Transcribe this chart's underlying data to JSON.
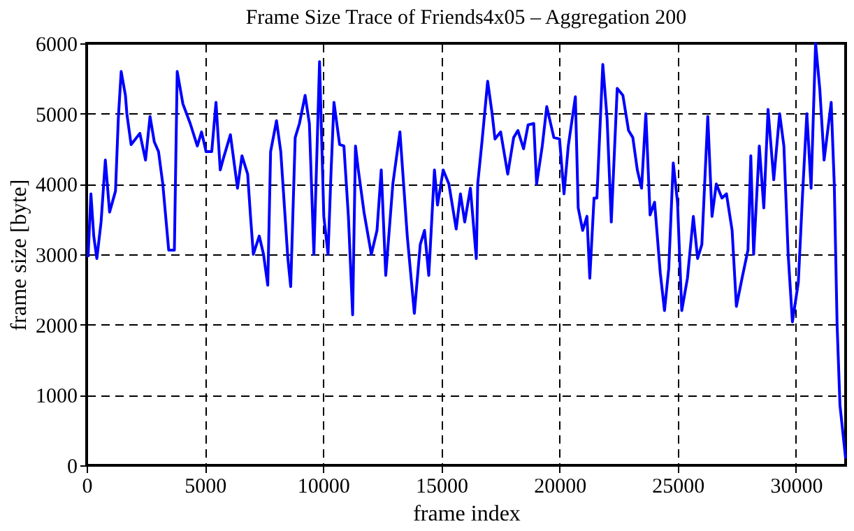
{
  "chart_data": {
    "type": "line",
    "title": "Frame Size Trace of Friends4x05 – Aggregation 200",
    "xlabel": "frame index",
    "ylabel": "frame size [byte]",
    "xlim": [
      0,
      32100
    ],
    "ylim": [
      0,
      6000
    ],
    "xticks": [
      0,
      5000,
      10000,
      15000,
      20000,
      25000,
      30000
    ],
    "yticks": [
      0,
      1000,
      2000,
      3000,
      4000,
      5000,
      6000
    ],
    "grid": true,
    "marker": "none",
    "line_style": "solid",
    "series": [
      {
        "color": "#0000ff",
        "x": [
          60,
          180,
          300,
          430,
          610,
          790,
          970,
          1220,
          1340,
          1460,
          1640,
          1700,
          1880,
          2250,
          2490,
          2680,
          2860,
          3040,
          3220,
          3470,
          3710,
          3830,
          4070,
          4380,
          4680,
          4860,
          5050,
          5290,
          5470,
          5650,
          5780,
          6080,
          6380,
          6570,
          6810,
          6930,
          7050,
          7300,
          7480,
          7660,
          7780,
          8030,
          8210,
          8510,
          8630,
          8820,
          9000,
          9240,
          9420,
          9610,
          9730,
          9850,
          10030,
          10210,
          10340,
          10460,
          10700,
          10880,
          11070,
          11250,
          11370,
          11490,
          11730,
          12040,
          12280,
          12460,
          12650,
          12950,
          13250,
          13560,
          13860,
          14110,
          14290,
          14470,
          14710,
          14840,
          15080,
          15320,
          15630,
          15810,
          15990,
          16230,
          16480,
          16540,
          16720,
          16960,
          17150,
          17270,
          17510,
          17810,
          18060,
          18240,
          18480,
          18670,
          18910,
          19030,
          19270,
          19460,
          19760,
          20000,
          20190,
          20370,
          20670,
          20790,
          20980,
          21160,
          21280,
          21460,
          21580,
          21830,
          22010,
          22190,
          22440,
          22680,
          22920,
          23100,
          23290,
          23470,
          23650,
          23830,
          24020,
          24260,
          24440,
          24620,
          24810,
          24990,
          25170,
          25410,
          25660,
          25840,
          26020,
          26270,
          26450,
          26630,
          26870,
          27060,
          27300,
          27480,
          27720,
          27970,
          28090,
          28210,
          28450,
          28640,
          28820,
          29060,
          29310,
          29490,
          29670,
          29850,
          30100,
          30280,
          30460,
          30640,
          30830,
          31010,
          31190,
          31490,
          31620,
          31740,
          31860,
          32100
        ],
        "values": [
          2960,
          3860,
          3260,
          2940,
          3460,
          4340,
          3600,
          3900,
          4940,
          5600,
          5260,
          5000,
          4560,
          4720,
          4340,
          4960,
          4600,
          4460,
          4000,
          3060,
          3060,
          5600,
          5140,
          4860,
          4540,
          4740,
          4460,
          4460,
          5160,
          4200,
          4360,
          4700,
          3940,
          4400,
          4140,
          3540,
          3000,
          3260,
          3000,
          2560,
          4460,
          4900,
          4460,
          2940,
          2540,
          4660,
          4860,
          5260,
          4860,
          3000,
          4340,
          5740,
          3540,
          3000,
          4200,
          5160,
          4560,
          4540,
          3540,
          2140,
          4540,
          4200,
          3600,
          3000,
          3340,
          4200,
          2700,
          4000,
          4740,
          3260,
          2160,
          3140,
          3340,
          2700,
          4200,
          3700,
          4200,
          4000,
          3360,
          3860,
          3460,
          3940,
          2940,
          4000,
          4600,
          5460,
          5000,
          4640,
          4740,
          4140,
          4660,
          4760,
          4500,
          4840,
          4860,
          4000,
          4540,
          5100,
          4660,
          4640,
          3860,
          4540,
          5240,
          3660,
          3340,
          3540,
          2660,
          3800,
          3800,
          5700,
          4940,
          3460,
          5360,
          5260,
          4760,
          4660,
          4200,
          3940,
          5000,
          3560,
          3740,
          2740,
          2200,
          2800,
          4300,
          3740,
          2200,
          2660,
          3540,
          2940,
          3140,
          4960,
          3540,
          4000,
          3800,
          3860,
          3340,
          2260,
          2660,
          3060,
          4400,
          3000,
          4540,
          3660,
          5060,
          4060,
          5000,
          4540,
          3000,
          2040,
          2600,
          3860,
          5000,
          3940,
          6000,
          5340,
          4340,
          5160,
          4000,
          2000,
          860,
          100
        ]
      }
    ]
  }
}
